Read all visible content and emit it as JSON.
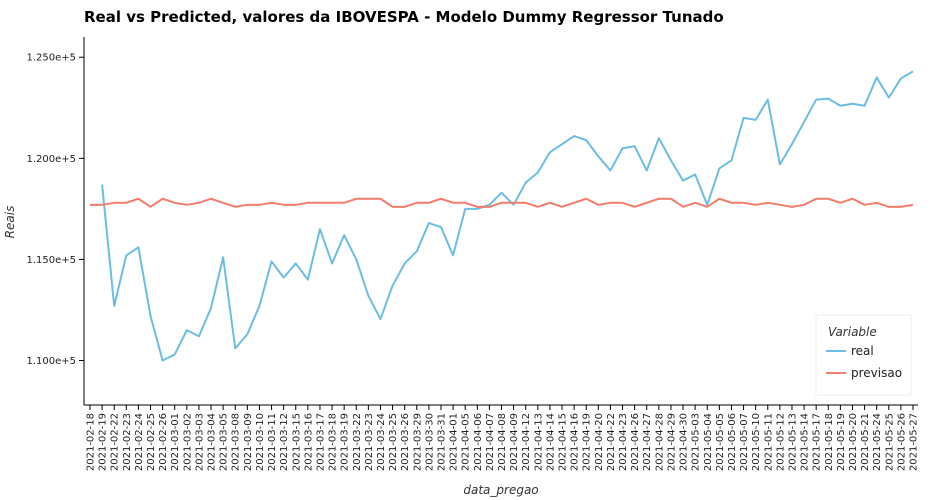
{
  "chart_data": {
    "type": "line",
    "title": "Real vs Predicted, valores da IBOVESPA - Modelo Dummy Regressor Tunado",
    "xlabel": "data_pregao",
    "ylabel": "Reais",
    "ylim": [
      107800,
      126000
    ],
    "yticks": [
      110000,
      115000,
      120000,
      125000
    ],
    "ytick_labels": [
      "1.100e+5",
      "1.150e+5",
      "1.200e+5",
      "1.250e+5"
    ],
    "legend": {
      "title": "Variable",
      "placement": "bottom-right"
    },
    "grid": false,
    "categories": [
      "2021-02-18",
      "2021-02-19",
      "2021-02-22",
      "2021-02-23",
      "2021-02-24",
      "2021-02-25",
      "2021-02-26",
      "2021-03-01",
      "2021-03-02",
      "2021-03-03",
      "2021-03-04",
      "2021-03-05",
      "2021-03-08",
      "2021-03-09",
      "2021-03-10",
      "2021-03-11",
      "2021-03-12",
      "2021-03-15",
      "2021-03-16",
      "2021-03-17",
      "2021-03-18",
      "2021-03-19",
      "2021-03-22",
      "2021-03-23",
      "2021-03-24",
      "2021-03-25",
      "2021-03-26",
      "2021-03-29",
      "2021-03-30",
      "2021-03-31",
      "2021-04-01",
      "2021-04-05",
      "2021-04-06",
      "2021-04-07",
      "2021-04-08",
      "2021-04-09",
      "2021-04-12",
      "2021-04-13",
      "2021-04-14",
      "2021-04-15",
      "2021-04-16",
      "2021-04-19",
      "2021-04-20",
      "2021-04-22",
      "2021-04-23",
      "2021-04-26",
      "2021-04-27",
      "2021-04-28",
      "2021-04-29",
      "2021-04-30",
      "2021-05-03",
      "2021-05-04",
      "2021-05-05",
      "2021-05-06",
      "2021-05-07",
      "2021-05-10",
      "2021-05-11",
      "2021-05-12",
      "2021-05-13",
      "2021-05-14",
      "2021-05-17",
      "2021-05-18",
      "2021-05-19",
      "2021-05-20",
      "2021-05-21",
      "2021-05-24",
      "2021-05-25",
      "2021-05-26",
      "2021-05-27"
    ],
    "series": [
      {
        "name": "real",
        "color": "#6cbde2",
        "values": [
          null,
          118700,
          112700,
          115200,
          115600,
          112200,
          110000,
          110300,
          111500,
          111200,
          112600,
          115100,
          110600,
          111300,
          112700,
          114900,
          114100,
          114800,
          114000,
          116500,
          114800,
          116200,
          115000,
          113200,
          112050,
          113700,
          114800,
          115400,
          116800,
          116600,
          115200,
          117500,
          117500,
          117700,
          118300,
          117700,
          118800,
          119300,
          120300,
          120700,
          121100,
          120900,
          120100,
          119400,
          120500,
          120600,
          119400,
          121000,
          119900,
          118900,
          119200,
          117700,
          119500,
          119900,
          122000,
          121900,
          122900,
          119700,
          120700,
          121800,
          122900,
          122950,
          122600,
          122700,
          122600,
          124000,
          123000,
          123950,
          124300
        ]
      },
      {
        "name": "previsao",
        "color": "#f47c6b",
        "values": [
          117700,
          117700,
          117800,
          117800,
          118000,
          117600,
          118000,
          117800,
          117700,
          117800,
          118000,
          117800,
          117600,
          117700,
          117700,
          117800,
          117700,
          117700,
          117800,
          117800,
          117800,
          117800,
          118000,
          118000,
          118000,
          117600,
          117600,
          117800,
          117800,
          118000,
          117800,
          117800,
          117600,
          117600,
          117800,
          117800,
          117800,
          117600,
          117800,
          117600,
          117800,
          118000,
          117700,
          117800,
          117800,
          117600,
          117800,
          118000,
          118000,
          117600,
          117800,
          117600,
          118000,
          117800,
          117800,
          117700,
          117800,
          117700,
          117600,
          117700,
          118000,
          118000,
          117800,
          118000,
          117700,
          117800,
          117600,
          117600,
          117700
        ]
      }
    ]
  }
}
